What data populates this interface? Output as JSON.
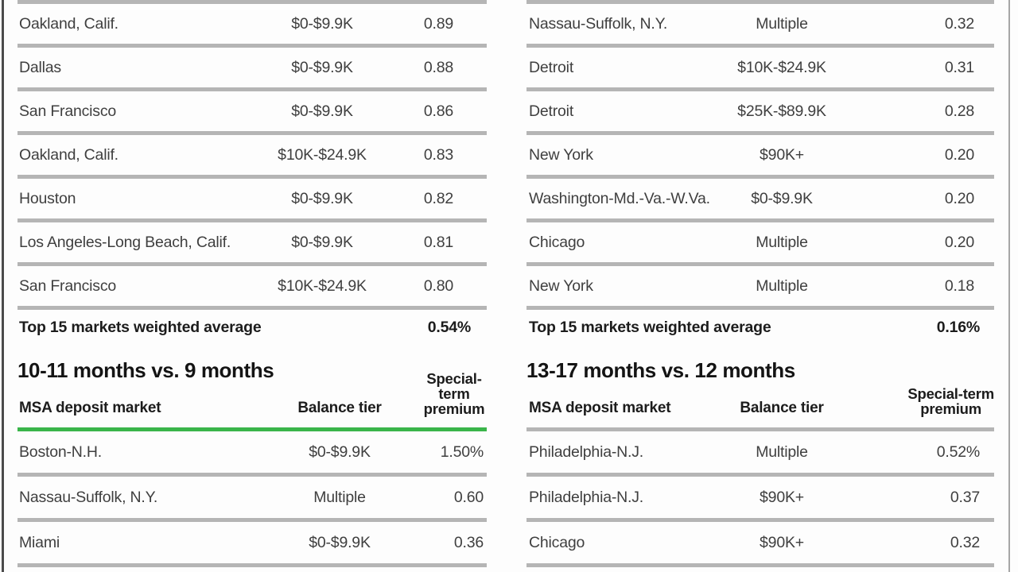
{
  "colors": {
    "accent_green": "#3ab54a",
    "rule_gray": "#b5b5b5",
    "left_border": "#4a4a4a",
    "right_border": "#a6a6a6"
  },
  "left_column": {
    "top_table": {
      "rows": [
        {
          "market": "Oakland, Calif.",
          "tier": "$0-$9.9K",
          "premium": "0.89"
        },
        {
          "market": "Dallas",
          "tier": "$0-$9.9K",
          "premium": "0.88"
        },
        {
          "market": "San Francisco",
          "tier": "$0-$9.9K",
          "premium": "0.86"
        },
        {
          "market": "Oakland, Calif.",
          "tier": "$10K-$24.9K",
          "premium": "0.83"
        },
        {
          "market": "Houston",
          "tier": "$0-$9.9K",
          "premium": "0.82"
        },
        {
          "market": "Los Angeles-Long Beach, Calif.",
          "tier": "$0-$9.9K",
          "premium": "0.81"
        },
        {
          "market": "San Francisco",
          "tier": "$10K-$24.9K",
          "premium": "0.80"
        }
      ],
      "summary": {
        "label": "Top 15 markets weighted average",
        "value": "0.54%"
      }
    },
    "section": {
      "heading": "10-11 months vs. 9 months",
      "headers": {
        "market": "MSA deposit market",
        "tier": "Balance tier",
        "premium": "Special-term\npremium"
      },
      "header_rule_color": "#3ab54a",
      "rows": [
        {
          "market": "Boston-N.H.",
          "tier": "$0-$9.9K",
          "premium": "1.50%"
        },
        {
          "market": "Nassau-Suffolk, N.Y.",
          "tier": "Multiple",
          "premium": "0.60"
        },
        {
          "market": "Miami",
          "tier": "$0-$9.9K",
          "premium": "0.36"
        }
      ]
    }
  },
  "right_column": {
    "top_table": {
      "rows": [
        {
          "market": "Nassau-Suffolk, N.Y.",
          "tier": "Multiple",
          "premium": "0.32"
        },
        {
          "market": "Detroit",
          "tier": "$10K-$24.9K",
          "premium": "0.31"
        },
        {
          "market": "Detroit",
          "tier": "$25K-$89.9K",
          "premium": "0.28"
        },
        {
          "market": "New York",
          "tier": "$90K+",
          "premium": "0.20"
        },
        {
          "market": "Washington-Md.-Va.-W.Va.",
          "tier": "$0-$9.9K",
          "premium": "0.20"
        },
        {
          "market": "Chicago",
          "tier": "Multiple",
          "premium": "0.20"
        },
        {
          "market": "New York",
          "tier": "Multiple",
          "premium": "0.18"
        }
      ],
      "summary": {
        "label": "Top 15 markets weighted average",
        "value": "0.16%"
      }
    },
    "section": {
      "heading": "13-17 months vs. 12 months",
      "headers": {
        "market": "MSA deposit market",
        "tier": "Balance tier",
        "premium": "Special-term\npremium"
      },
      "header_rule_color": "#b5b5b5",
      "rows": [
        {
          "market": "Philadelphia-N.J.",
          "tier": "Multiple",
          "premium": "0.52%"
        },
        {
          "market": "Philadelphia-N.J.",
          "tier": "$90K+",
          "premium": "0.37"
        },
        {
          "market": "Chicago",
          "tier": "$90K+",
          "premium": "0.32"
        }
      ]
    }
  }
}
